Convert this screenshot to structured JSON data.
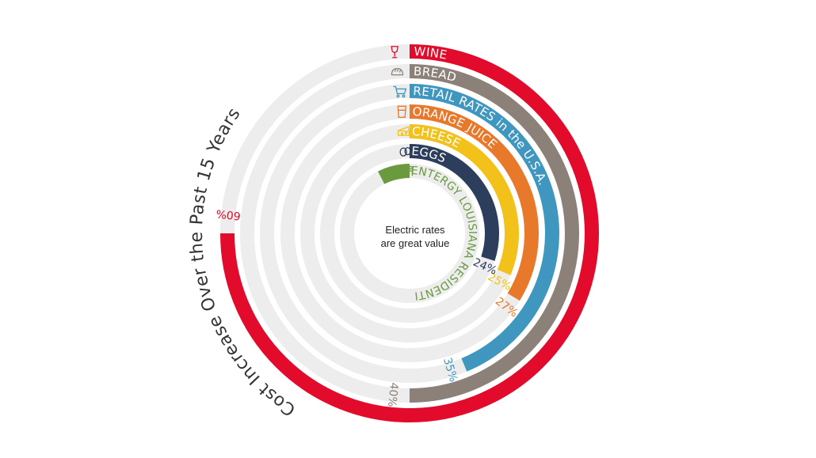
{
  "chart_data": {
    "type": "radial-bar",
    "title": "Cost Increase Over the Past 15 Years",
    "center_label": [
      "Electric rates",
      "are great value"
    ],
    "unit": "%",
    "max_value": 80,
    "series": [
      {
        "name": "WINE",
        "value": 60,
        "value_label": "60%",
        "color": "#e30b2b",
        "icon": "wine-glass-icon"
      },
      {
        "name": "BREAD",
        "value": 40,
        "value_label": "40%",
        "color": "#8c8179",
        "icon": "bread-icon"
      },
      {
        "name": "RETAIL RATES in the U.S.A.",
        "value": 35,
        "value_label": "35%",
        "color": "#3f97bf",
        "icon": "shopping-cart-icon"
      },
      {
        "name": "ORANGE JUICE",
        "value": 27,
        "value_label": "27%",
        "color": "#e8782a",
        "icon": "juice-glass-icon"
      },
      {
        "name": "CHEESE",
        "value": 25,
        "value_label": "25%",
        "color": "#f2c21b",
        "icon": "cheese-icon"
      },
      {
        "name": "EGGS",
        "value": 24,
        "value_label": "24%",
        "color": "#2c3e5c",
        "icon": "eggs-icon"
      },
      {
        "name": "ENTERGY LOUISIANA RESIDENTIAL RATES",
        "value": -6,
        "value_label": "-6",
        "color": "#6b9a3e",
        "icon": "people-icon"
      }
    ],
    "track_color": "#ededed"
  }
}
